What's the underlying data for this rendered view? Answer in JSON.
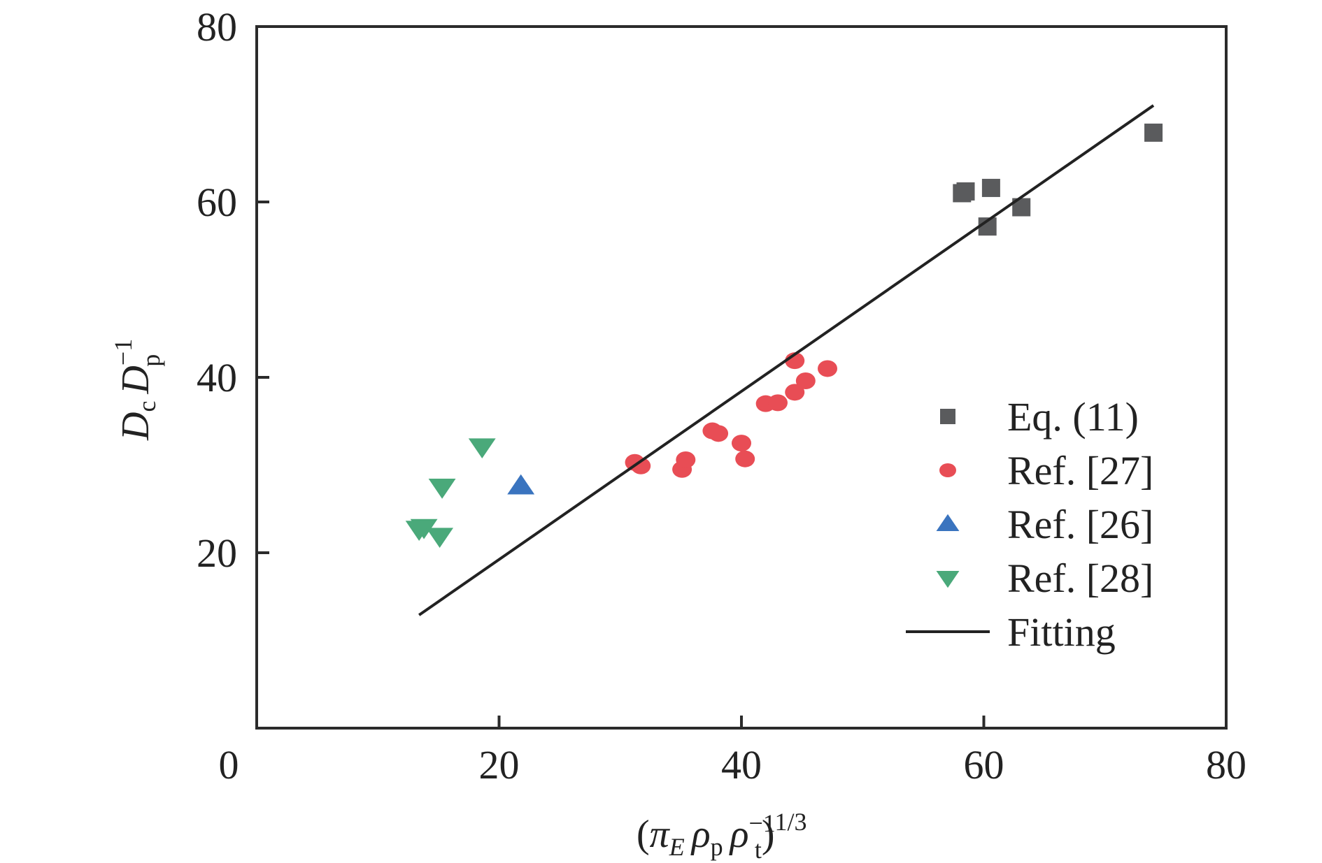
{
  "chart_data": {
    "type": "scatter",
    "title": "",
    "xlabel": "(π_E ρ_p ρ_t^-1)^1/3",
    "ylabel": "D_c D_p^-1",
    "xlabel_parts": {
      "open": "(",
      "pi": "π",
      "pi_sub": "E",
      "rho1": "ρ",
      "rho1_sub": "p",
      "rho2": "ρ",
      "rho2_sup": "−1",
      "rho2_sub": "t",
      "close": ")",
      "power": "1/3"
    },
    "ylabel_parts": {
      "d1": "D",
      "d1_sub": "c",
      "d2": "D",
      "d2_sup": "−1",
      "d2_sub": "p"
    },
    "xlim": [
      0,
      80
    ],
    "ylim": [
      0,
      80
    ],
    "xticks": [
      0,
      20,
      40,
      60,
      80
    ],
    "yticks": [
      20,
      40,
      60,
      80
    ],
    "xtick_labels": [
      "0",
      "20",
      "40",
      "60",
      "80"
    ],
    "ytick_labels": [
      "20",
      "40",
      "60",
      "80"
    ],
    "grid": false,
    "legend_position": "right",
    "series": [
      {
        "name": "Eq. (11)",
        "marker": "square",
        "color": "#5a5b5d",
        "points": [
          [
            58.2,
            61.0
          ],
          [
            58.5,
            61.2
          ],
          [
            60.6,
            61.6
          ],
          [
            60.3,
            57.2
          ],
          [
            63.1,
            59.4
          ],
          [
            74.0,
            67.9
          ]
        ]
      },
      {
        "name": "Ref. [27]",
        "marker": "circle",
        "color": "#e84d55",
        "points": [
          [
            31.2,
            30.3
          ],
          [
            31.7,
            29.9
          ],
          [
            35.1,
            29.5
          ],
          [
            35.4,
            30.6
          ],
          [
            37.6,
            33.9
          ],
          [
            38.1,
            33.6
          ],
          [
            40.0,
            32.5
          ],
          [
            40.3,
            30.7
          ],
          [
            42.0,
            37.0
          ],
          [
            43.0,
            37.1
          ],
          [
            44.4,
            38.3
          ],
          [
            45.3,
            39.6
          ],
          [
            44.4,
            41.9
          ],
          [
            47.1,
            41.0
          ]
        ]
      },
      {
        "name": "Ref. [26]",
        "marker": "triangle-up",
        "color": "#3a74bf",
        "points": [
          [
            21.8,
            27.6
          ]
        ]
      },
      {
        "name": "Ref. [28]",
        "marker": "triangle-down",
        "color": "#4aa97a",
        "points": [
          [
            18.6,
            32.1
          ],
          [
            15.3,
            27.5
          ],
          [
            13.4,
            22.7
          ],
          [
            13.8,
            22.9
          ],
          [
            15.1,
            21.9
          ]
        ]
      },
      {
        "name": "Fitting",
        "marker": "line",
        "color": "#222222",
        "points": [
          [
            13.4,
            12.9
          ],
          [
            74.0,
            71.0
          ]
        ]
      }
    ]
  }
}
